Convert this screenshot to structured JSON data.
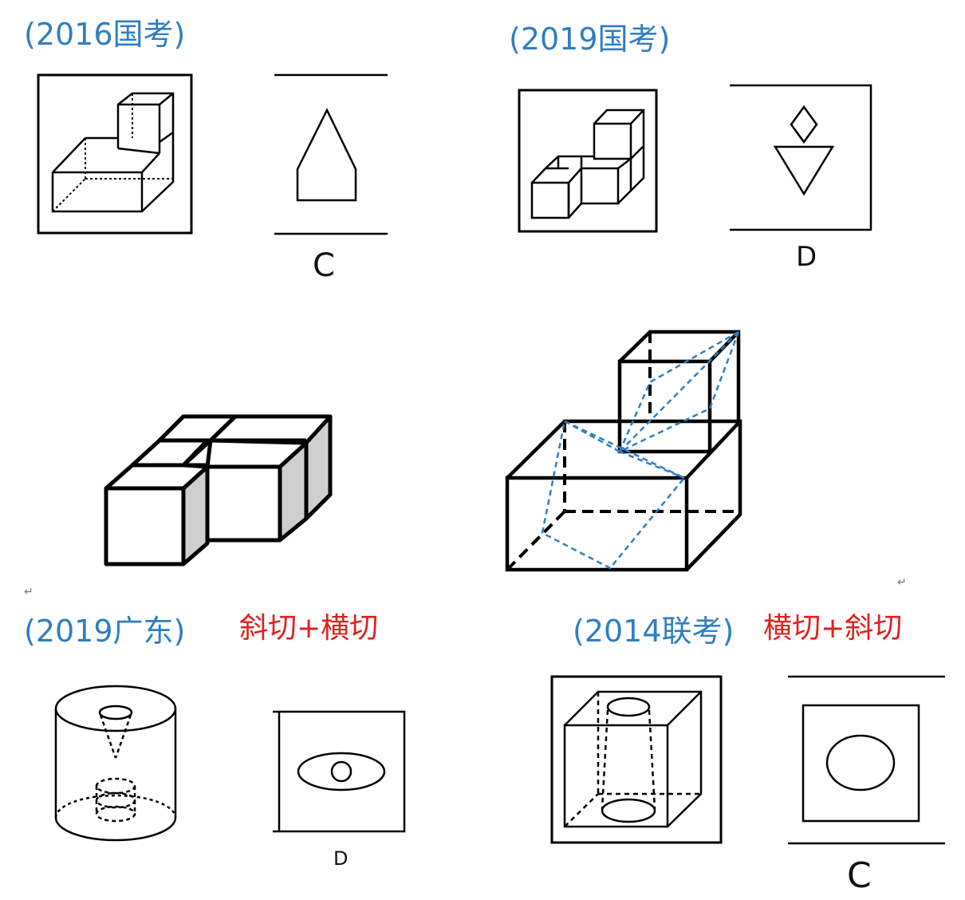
{
  "labels": {
    "exam_2016_guokao": "(2016国考)",
    "exam_2019_guokao": "(2019国考)",
    "exam_2019_guangdong": "(2019广东)",
    "exam_2014_liankao": "(2014联考)",
    "method_left": "斜切+横切",
    "method_right": "横切+斜切"
  },
  "answers": {
    "q2016": "C",
    "q2019_guokao": "D",
    "q2019_guangdong": "D",
    "q2014": "C"
  },
  "marks": {
    "return_symbol": "↵"
  },
  "colors": {
    "label_blue": "#2f7ec1",
    "label_red": "#e0201f",
    "cut_line_blue": "#2f7ec1",
    "shade_gray": "#cfcfcf"
  }
}
